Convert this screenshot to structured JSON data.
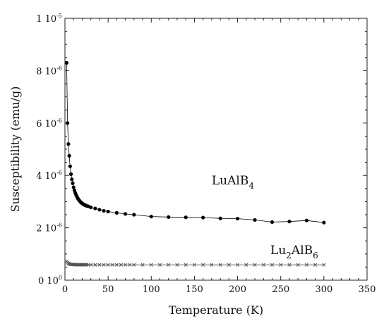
{
  "chart_data": {
    "type": "scatter",
    "title": "",
    "xlabel": "Temperature (K)",
    "ylabel": "Susceptibility (emu/g)",
    "xlim": [
      0,
      350
    ],
    "ylim": [
      0,
      1e-05
    ],
    "grid": false,
    "legend": "none",
    "xticks": [
      {
        "value": 0,
        "label": "0"
      },
      {
        "value": 50,
        "label": "50"
      },
      {
        "value": 100,
        "label": "100"
      },
      {
        "value": 150,
        "label": "150"
      },
      {
        "value": 200,
        "label": "200"
      },
      {
        "value": 250,
        "label": "250"
      },
      {
        "value": 300,
        "label": "300"
      },
      {
        "value": 350,
        "label": "350"
      }
    ],
    "yticks": [
      {
        "value": 0,
        "mantissa": "0 10",
        "exponent": "0"
      },
      {
        "value": 2e-06,
        "mantissa": "2 10",
        "exponent": "-6"
      },
      {
        "value": 4e-06,
        "mantissa": "4 10",
        "exponent": "-6"
      },
      {
        "value": 6e-06,
        "mantissa": "6 10",
        "exponent": "-6"
      },
      {
        "value": 8e-06,
        "mantissa": "8 10",
        "exponent": "-6"
      },
      {
        "value": 1e-05,
        "mantissa": "1 10",
        "exponent": "-5"
      }
    ],
    "series": [
      {
        "name": "LuAlB4",
        "label_main": "LuAlB",
        "label_sub": "4",
        "label_at": [
          170,
          3.65e-06
        ],
        "marker": "dot",
        "color": "#000000",
        "connected": true,
        "x": [
          2,
          3,
          4,
          5,
          6,
          7,
          8,
          9,
          10,
          11,
          12,
          13,
          14,
          15,
          16,
          17,
          18,
          19,
          20,
          21,
          22,
          23,
          24,
          25,
          27,
          30,
          35,
          40,
          45,
          50,
          60,
          70,
          80,
          100,
          120,
          140,
          160,
          180,
          200,
          220,
          240,
          260,
          280,
          300
        ],
        "y": [
          8.3e-06,
          6e-06,
          5.2e-06,
          4.75e-06,
          4.35e-06,
          4.05e-06,
          3.85e-06,
          3.7e-06,
          3.55e-06,
          3.43e-06,
          3.33e-06,
          3.25e-06,
          3.18e-06,
          3.12e-06,
          3.07e-06,
          3.03e-06,
          2.99e-06,
          2.96e-06,
          2.93e-06,
          2.91e-06,
          2.89e-06,
          2.87e-06,
          2.86e-06,
          2.84e-06,
          2.82e-06,
          2.78e-06,
          2.74e-06,
          2.69e-06,
          2.65e-06,
          2.62e-06,
          2.57e-06,
          2.53e-06,
          2.5e-06,
          2.43e-06,
          2.41e-06,
          2.4e-06,
          2.39e-06,
          2.36e-06,
          2.35e-06,
          2.3e-06,
          2.22e-06,
          2.24e-06,
          2.28e-06,
          2.2e-06
        ]
      },
      {
        "name": "Lu2AlB6",
        "label_main": "Lu",
        "label_sub1": "2",
        "label_mid": "AlB",
        "label_sub2": "6",
        "label_at": [
          238,
          9.9e-07
        ],
        "marker": "cross",
        "color": "#555555",
        "connected": true,
        "x": [
          2,
          3,
          4,
          5,
          6,
          7,
          8,
          9,
          10,
          11,
          12,
          13,
          14,
          15,
          16,
          17,
          18,
          19,
          20,
          21,
          22,
          23,
          24,
          25,
          27,
          30,
          35,
          40,
          45,
          50,
          55,
          60,
          65,
          70,
          75,
          80,
          90,
          100,
          110,
          120,
          130,
          140,
          150,
          160,
          170,
          180,
          190,
          200,
          210,
          220,
          230,
          240,
          250,
          260,
          270,
          280,
          290,
          300
        ],
        "y": [
          7.2e-07,
          6.7e-07,
          6.4e-07,
          6.2e-07,
          6.1e-07,
          6.05e-07,
          6e-07,
          6e-07,
          5.95e-07,
          5.95e-07,
          5.9e-07,
          5.9e-07,
          5.9e-07,
          5.9e-07,
          5.9e-07,
          5.9e-07,
          5.9e-07,
          5.9e-07,
          5.9e-07,
          5.9e-07,
          5.9e-07,
          5.9e-07,
          5.9e-07,
          5.9e-07,
          5.85e-07,
          5.85e-07,
          5.85e-07,
          5.85e-07,
          5.85e-07,
          5.85e-07,
          5.85e-07,
          5.85e-07,
          5.85e-07,
          5.85e-07,
          5.85e-07,
          5.85e-07,
          5.85e-07,
          5.85e-07,
          5.85e-07,
          5.85e-07,
          5.85e-07,
          5.85e-07,
          5.85e-07,
          5.85e-07,
          5.85e-07,
          5.85e-07,
          5.85e-07,
          5.85e-07,
          5.85e-07,
          5.85e-07,
          5.85e-07,
          5.85e-07,
          5.85e-07,
          5.85e-07,
          5.85e-07,
          5.85e-07,
          5.85e-07,
          5.85e-07
        ]
      }
    ]
  }
}
